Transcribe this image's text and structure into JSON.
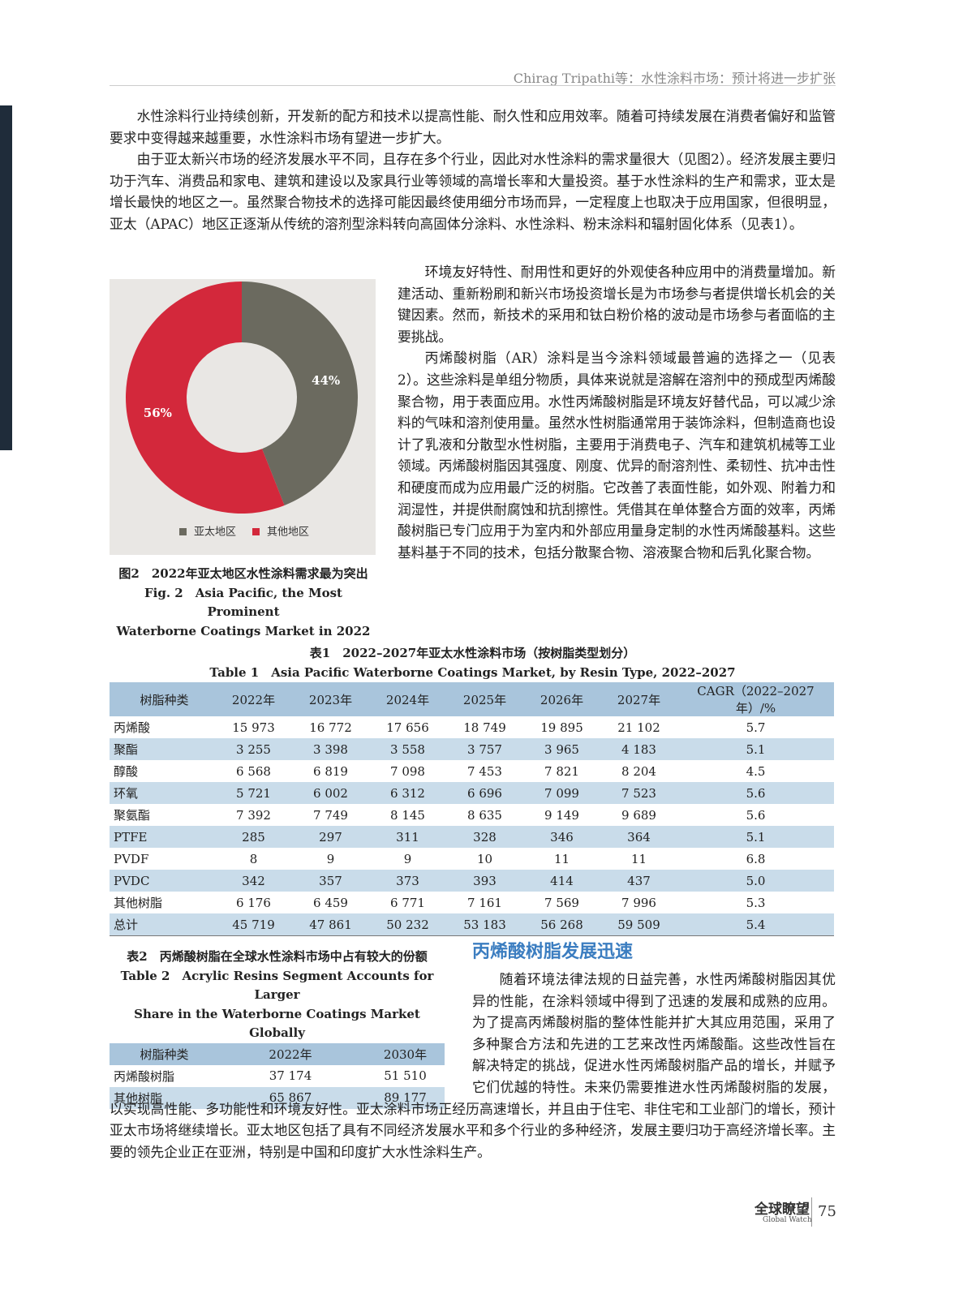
{
  "header": {
    "running_title": "Chirag Tripathi等：水性涂料市场：预计将进一步扩张"
  },
  "body": {
    "paragraphs": [
      "水性涂料行业持续创新，开发新的配方和技术以提高性能、耐久性和应用效率。随着可持续发展在消费者偏好和监管要求中变得越来越重要，水性涂料市场有望进一步扩大。",
      "由于亚太新兴市场的经济发展水平不同，且存在多个行业，因此对水性涂料的需求量很大（见图2）。经济发展主要归功于汽车、消费品和家电、建筑和建设以及家具行业等领域的高增长率和大量投资。基于水性涂料的生产和需求，亚太是增长最快的地区之一。虽然聚合物技术的选择可能因最终使用细分市场而异，一定程度上也取决于应用国家，但很明显，亚太（APAC）地区正逐渐从传统的溶剂型涂料转向高固体分涂料、水性涂料、粉末涂料和辐射固化体系（见表1）。",
      "环境友好特性、耐用性和更好的外观使各种应用中的消费量增加。新建活动、重新粉刷和新兴市场投资增长是为市场参与者提供增长机会的关键因素。然而，新技术的采用和钛白粉价格的波动是市场参与者面临的主要挑战。",
      "丙烯酸树脂（AR）涂料是当今涂料领域最普遍的选择之一（见表2）。这些涂料是单组分物质，具体来说就是溶解在溶剂中的预成型丙烯酸聚合物，用于表面应用。水性丙烯酸树脂是环境友好替代品，可以减少涂料的气味和溶剂使用量。虽然水性树脂通常用于装饰涂料，但制造商也设计了乳液和分散型水性树脂，主要用于消费电子、汽车和建筑机械等工业领域。丙烯酸树脂因其强度、刚度、优异的耐溶剂性、柔韧性、抗冲击性和硬度而成为应用最广泛的树脂。它改善了表面性能，如外观、附着力和润湿性，并提供耐腐蚀和抗刮擦性。凭借其在单体整合方面的效率，丙烯酸树脂已专门应用于为室内和外部应用量身定制的水性丙烯酸基料。这些基料基于不同的技术，包括分散聚合物、溶液聚合物和后乳化聚合物。"
    ],
    "section_heading": "丙烯酸树脂发展迅速",
    "section_paragraph": "随着环境法律法规的日益完善，水性丙烯酸树脂因其优异的性能，在涂料领域中得到了迅速的发展和成熟的应用。为了提高丙烯酸树脂的整体性能并扩大其应用范围，采用了多种聚合方法和先进的工艺来改性丙烯酸酯。这些改性旨在解决特定的挑战，促进水性丙烯酸树脂产品的增长，并赋予它们优越的特性。未来仍需要推进水性丙烯酸树脂的发展，以实现高性能、多功能性和环境友好性。亚太涂料市场正经历高速增长，并且由于住宅、非住宅和工业部门的增长，预计亚太市场将继续增长。亚太地区包括了具有不同经济发展水平和多个行业的多种经济，发展主要归功于高经济增长率。主要的领先企业正在亚洲，特别是中国和印度扩大水性涂料生产。"
  },
  "chart_data": {
    "type": "donut",
    "categories": [
      "亚太地区",
      "其他地区"
    ],
    "values": [
      44,
      56
    ],
    "value_labels": [
      "44%",
      "56%"
    ],
    "colors": [
      "#6b6a5f",
      "#d3283b"
    ],
    "caption_cn": "图2　2022年亚太地区水性涂料需求最为突出",
    "caption_en_1": "Fig. 2　Asia Pacific, the Most Prominent",
    "caption_en_2": "Waterborne Coatings Market in 2022"
  },
  "table1": {
    "title_cn": "表1　2022–2027年亚太水性涂料市场（按树脂类型划分）",
    "title_en": "Table 1　Asia Pacific Waterborne Coatings Market, by Resin Type, 2022–2027",
    "header": [
      "树脂种类",
      "2022年",
      "2023年",
      "2024年",
      "2025年",
      "2026年",
      "2027年",
      "CAGR（2022–2027年）/%"
    ],
    "rows": [
      [
        "丙烯酸",
        "15 973",
        "16 772",
        "17 656",
        "18 749",
        "19 895",
        "21 102",
        "5.7"
      ],
      [
        "聚酯",
        "3 255",
        "3 398",
        "3 558",
        "3 757",
        "3 965",
        "4 183",
        "5.1"
      ],
      [
        "醇酸",
        "6 568",
        "6 819",
        "7 098",
        "7 453",
        "7 821",
        "8 204",
        "4.5"
      ],
      [
        "环氧",
        "5 721",
        "6 002",
        "6 312",
        "6 696",
        "7 099",
        "7 523",
        "5.6"
      ],
      [
        "聚氨酯",
        "7 392",
        "7 749",
        "8 145",
        "8 635",
        "9 149",
        "9 689",
        "5.6"
      ],
      [
        "PTFE",
        "285",
        "297",
        "311",
        "328",
        "346",
        "364",
        "5.1"
      ],
      [
        "PVDF",
        "8",
        "9",
        "9",
        "10",
        "11",
        "11",
        "6.8"
      ],
      [
        "PVDC",
        "342",
        "357",
        "373",
        "393",
        "414",
        "437",
        "5.0"
      ],
      [
        "其他树脂",
        "6 176",
        "6 459",
        "6 771",
        "7 161",
        "7 569",
        "7 996",
        "5.3"
      ],
      [
        "总计",
        "45 719",
        "47 861",
        "50 232",
        "53 183",
        "56 268",
        "59 509",
        "5.4"
      ]
    ]
  },
  "table2": {
    "title_cn": "表2　丙烯酸树脂在全球水性涂料市场中占有较大的份额",
    "title_en_1": "Table 2　Acrylic Resins Segment Accounts for Larger",
    "title_en_2": "Share in the Waterborne Coatings Market Globally",
    "header": [
      "树脂种类",
      "2022年",
      "2030年"
    ],
    "rows": [
      [
        "丙烯酸树脂",
        "37 174",
        "51 510"
      ],
      [
        "其他树脂",
        "65 867",
        "89 177"
      ]
    ]
  },
  "footer": {
    "journal_cn": "全球瞭望",
    "journal_en": "Global Watch",
    "page_number": "75"
  }
}
